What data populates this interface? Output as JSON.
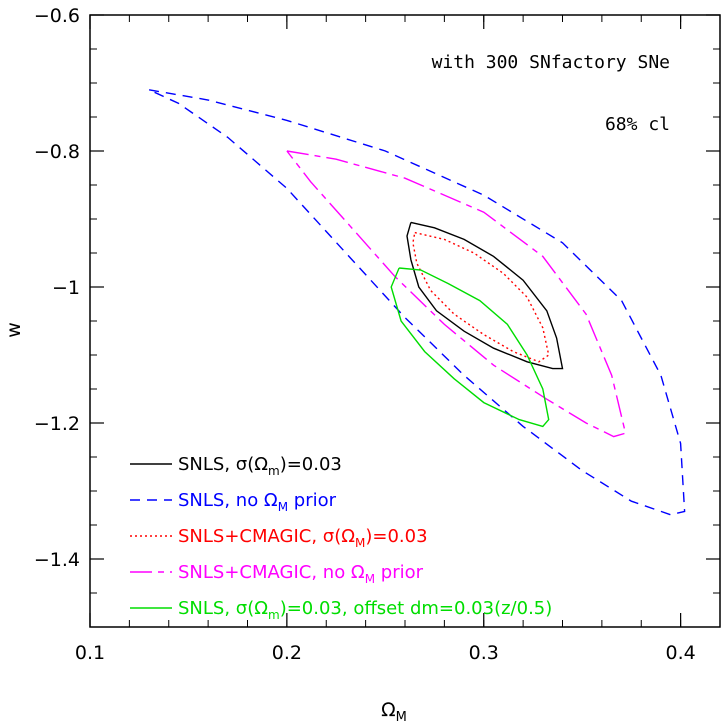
{
  "chart_data": {
    "type": "line",
    "title": "",
    "xlabel": "Ω",
    "xlabel_sub": "M",
    "ylabel": "w",
    "xlim": [
      0.1,
      0.42
    ],
    "ylim": [
      -1.5,
      -0.6
    ],
    "x_ticks": [
      "0.1",
      "0.2",
      "0.3",
      "0.4"
    ],
    "x_tick_values": [
      0.1,
      0.2,
      0.3,
      0.4
    ],
    "y_ticks": [
      "−0.6",
      "−0.8",
      "−1",
      "−1.2",
      "−1.4"
    ],
    "y_tick_values": [
      -0.6,
      -0.8,
      -1.0,
      -1.2,
      -1.4
    ],
    "annotations": [
      "with 300 SNfactory SNe",
      "68% cl"
    ],
    "grid": false,
    "legend_placement": "bottom-left",
    "series": [
      {
        "name": "SNLS, σ(Ωm)=0.03",
        "color": "#000000",
        "dash": "solid",
        "points": [
          [
            0.263,
            -0.905
          ],
          [
            0.275,
            -0.913
          ],
          [
            0.29,
            -0.93
          ],
          [
            0.305,
            -0.955
          ],
          [
            0.32,
            -0.99
          ],
          [
            0.332,
            -1.035
          ],
          [
            0.337,
            -1.075
          ],
          [
            0.34,
            -1.12
          ],
          [
            0.335,
            -1.12
          ],
          [
            0.322,
            -1.11
          ],
          [
            0.305,
            -1.09
          ],
          [
            0.29,
            -1.065
          ],
          [
            0.276,
            -1.035
          ],
          [
            0.267,
            -1.0
          ],
          [
            0.263,
            -0.96
          ],
          [
            0.261,
            -0.925
          ],
          [
            0.263,
            -0.905
          ]
        ]
      },
      {
        "name": "SNLS, no ΩM prior",
        "color": "#0000ff",
        "dash": "dashed",
        "points": [
          [
            0.13,
            -0.71
          ],
          [
            0.16,
            -0.725
          ],
          [
            0.2,
            -0.755
          ],
          [
            0.25,
            -0.8
          ],
          [
            0.3,
            -0.865
          ],
          [
            0.34,
            -0.935
          ],
          [
            0.37,
            -1.02
          ],
          [
            0.39,
            -1.13
          ],
          [
            0.4,
            -1.23
          ],
          [
            0.402,
            -1.33
          ],
          [
            0.395,
            -1.335
          ],
          [
            0.375,
            -1.315
          ],
          [
            0.35,
            -1.27
          ],
          [
            0.32,
            -1.205
          ],
          [
            0.29,
            -1.13
          ],
          [
            0.26,
            -1.045
          ],
          [
            0.23,
            -0.95
          ],
          [
            0.2,
            -0.855
          ],
          [
            0.17,
            -0.78
          ],
          [
            0.145,
            -0.73
          ],
          [
            0.13,
            -0.71
          ]
        ]
      },
      {
        "name": "SNLS+CMAGIC, σ(ΩM)=0.03",
        "color": "#ff0000",
        "dash": "dotted",
        "points": [
          [
            0.265,
            -0.92
          ],
          [
            0.28,
            -0.93
          ],
          [
            0.295,
            -0.95
          ],
          [
            0.31,
            -0.98
          ],
          [
            0.322,
            -1.015
          ],
          [
            0.33,
            -1.06
          ],
          [
            0.333,
            -1.1
          ],
          [
            0.328,
            -1.11
          ],
          [
            0.315,
            -1.095
          ],
          [
            0.3,
            -1.07
          ],
          [
            0.285,
            -1.04
          ],
          [
            0.273,
            -1.005
          ],
          [
            0.266,
            -0.965
          ],
          [
            0.264,
            -0.935
          ],
          [
            0.265,
            -0.92
          ]
        ]
      },
      {
        "name": "SNLS+CMAGIC, no ΩM prior",
        "color": "#ff00ff",
        "dash": "longdash",
        "points": [
          [
            0.2,
            -0.8
          ],
          [
            0.225,
            -0.812
          ],
          [
            0.26,
            -0.84
          ],
          [
            0.3,
            -0.89
          ],
          [
            0.33,
            -0.955
          ],
          [
            0.352,
            -1.04
          ],
          [
            0.365,
            -1.13
          ],
          [
            0.372,
            -1.215
          ],
          [
            0.366,
            -1.22
          ],
          [
            0.352,
            -1.2
          ],
          [
            0.332,
            -1.165
          ],
          [
            0.305,
            -1.115
          ],
          [
            0.28,
            -1.055
          ],
          [
            0.255,
            -0.985
          ],
          [
            0.232,
            -0.91
          ],
          [
            0.212,
            -0.845
          ],
          [
            0.2,
            -0.8
          ]
        ]
      },
      {
        "name": "SNLS, σ(Ωm)=0.03, offset dm=0.03(z/0.5)",
        "color": "#00dd00",
        "dash": "solid",
        "points": [
          [
            0.257,
            -0.972
          ],
          [
            0.268,
            -0.975
          ],
          [
            0.282,
            -0.995
          ],
          [
            0.298,
            -1.02
          ],
          [
            0.312,
            -1.055
          ],
          [
            0.322,
            -1.1
          ],
          [
            0.33,
            -1.15
          ],
          [
            0.333,
            -1.195
          ],
          [
            0.33,
            -1.205
          ],
          [
            0.318,
            -1.195
          ],
          [
            0.3,
            -1.17
          ],
          [
            0.285,
            -1.135
          ],
          [
            0.27,
            -1.095
          ],
          [
            0.258,
            -1.05
          ],
          [
            0.253,
            -1.0
          ],
          [
            0.257,
            -0.972
          ]
        ]
      }
    ],
    "legend": [
      {
        "label": "SNLS, σ(Ω",
        "sub": "m",
        "suffix": ")=0.03"
      },
      {
        "label": "SNLS, no Ω",
        "sub": "M",
        "suffix": " prior"
      },
      {
        "label": "SNLS+CMAGIC, σ(Ω",
        "sub": "M",
        "suffix": ")=0.03"
      },
      {
        "label": "SNLS+CMAGIC, no Ω",
        "sub": "M",
        "suffix": " prior"
      },
      {
        "label": "SNLS, σ(Ω",
        "sub": "m",
        "suffix": ")=0.03, offset dm=0.03(z/0.5)"
      }
    ]
  }
}
